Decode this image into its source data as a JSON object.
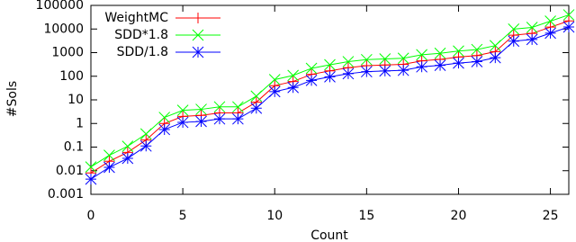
{
  "chart_data": {
    "type": "line",
    "log_y": true,
    "x_label": "Count",
    "y_label": "#Sols",
    "x": [
      0,
      1,
      2,
      3,
      4,
      5,
      6,
      7,
      8,
      9,
      10,
      11,
      12,
      13,
      14,
      15,
      16,
      17,
      18,
      19,
      20,
      21,
      22,
      23,
      24,
      25,
      26
    ],
    "series": [
      {
        "name": "WeightMC",
        "color": "#ff0000",
        "marker": "plus",
        "values": [
          0.008,
          0.025,
          0.06,
          0.2,
          1.0,
          2.0,
          2.2,
          2.8,
          2.8,
          8,
          40,
          60,
          120,
          170,
          230,
          280,
          300,
          320,
          450,
          520,
          650,
          750,
          1100,
          5500,
          6500,
          12000,
          22000
        ]
      },
      {
        "name": "SDD*1.8",
        "color": "#00ff00",
        "marker": "cross",
        "values": [
          0.0144,
          0.045,
          0.108,
          0.36,
          1.8,
          3.6,
          3.96,
          5.04,
          5.04,
          14.4,
          72,
          108,
          216,
          306,
          414,
          504,
          540,
          576,
          810,
          936,
          1170,
          1350,
          1980,
          9900,
          11700,
          21600,
          39600
        ]
      },
      {
        "name": "SDD/1.8",
        "color": "#0000ff",
        "marker": "star",
        "values": [
          0.0044,
          0.0139,
          0.0333,
          0.111,
          0.556,
          1.11,
          1.22,
          1.56,
          1.56,
          4.44,
          22.2,
          33.3,
          66.7,
          94.4,
          128,
          156,
          167,
          178,
          250,
          289,
          361,
          417,
          611,
          3056,
          3611,
          6667,
          12222
        ]
      }
    ],
    "xlim": [
      0,
      26
    ],
    "xticks": [
      0,
      5,
      10,
      15,
      20,
      25
    ],
    "ylim": [
      0.001,
      100000
    ],
    "yticks": [
      0.001,
      0.01,
      0.1,
      1,
      10,
      100,
      1000,
      10000,
      100000
    ],
    "legend": "top-left"
  }
}
